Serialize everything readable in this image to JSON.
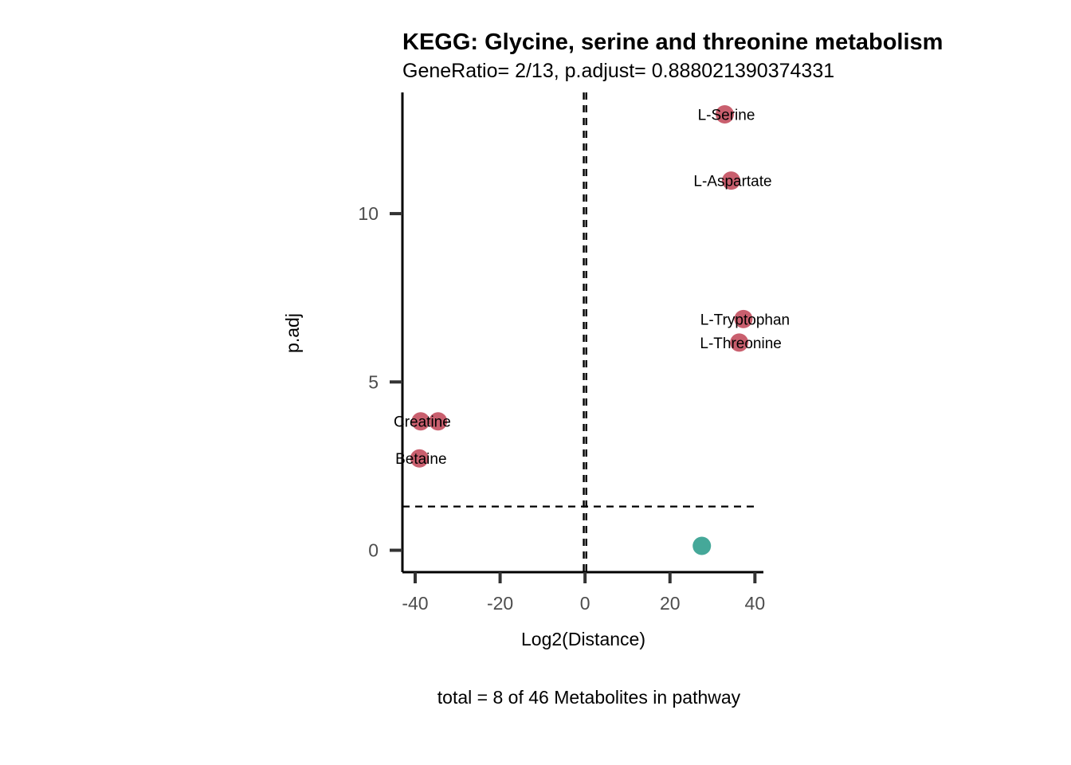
{
  "chart_data": {
    "type": "scatter",
    "title": "KEGG: Glycine, serine and threonine metabolism",
    "subtitle": "GeneRatio= 2/13, p.adjust= 0.888021390374331",
    "xlabel": "Log2(Distance)",
    "ylabel": "p.adj",
    "caption": "total = 8 of 46 Metabolites in pathway",
    "xlim": [
      -43,
      42
    ],
    "ylim": [
      -0.65,
      13.6
    ],
    "xticks": [
      -40,
      -20,
      0,
      20,
      40
    ],
    "xtick_labels": [
      "-40",
      "-20",
      "0",
      "20",
      "40"
    ],
    "yticks": [
      0,
      5,
      10
    ],
    "ytick_labels": [
      "0",
      "5",
      "10"
    ],
    "vlines": [
      -0.3,
      0.3
    ],
    "hline": 1.3,
    "colors": {
      "significant": "#C95F6E",
      "not_significant": "#45A899",
      "axis": "#000000",
      "tick": "#333333",
      "reference_line": "#000000"
    },
    "points": [
      {
        "x": 32.9,
        "y": 12.95,
        "label": "L-Serine",
        "group": "significant"
      },
      {
        "x": 34.4,
        "y": 10.98,
        "label": "L-Aspartate",
        "group": "significant"
      },
      {
        "x": 37.3,
        "y": 6.87,
        "label": "L-Tryptophan",
        "group": "significant"
      },
      {
        "x": 36.3,
        "y": 6.17,
        "label": "L-Threonine",
        "group": "significant"
      },
      {
        "x": -38.7,
        "y": 3.83,
        "label": "Creatine",
        "group": "significant"
      },
      {
        "x": -34.6,
        "y": 3.83,
        "label": "",
        "group": "significant"
      },
      {
        "x": -39.0,
        "y": 2.73,
        "label": "Betaine",
        "group": "significant"
      },
      {
        "x": 27.5,
        "y": 0.13,
        "label": "",
        "group": "not_significant"
      }
    ]
  }
}
